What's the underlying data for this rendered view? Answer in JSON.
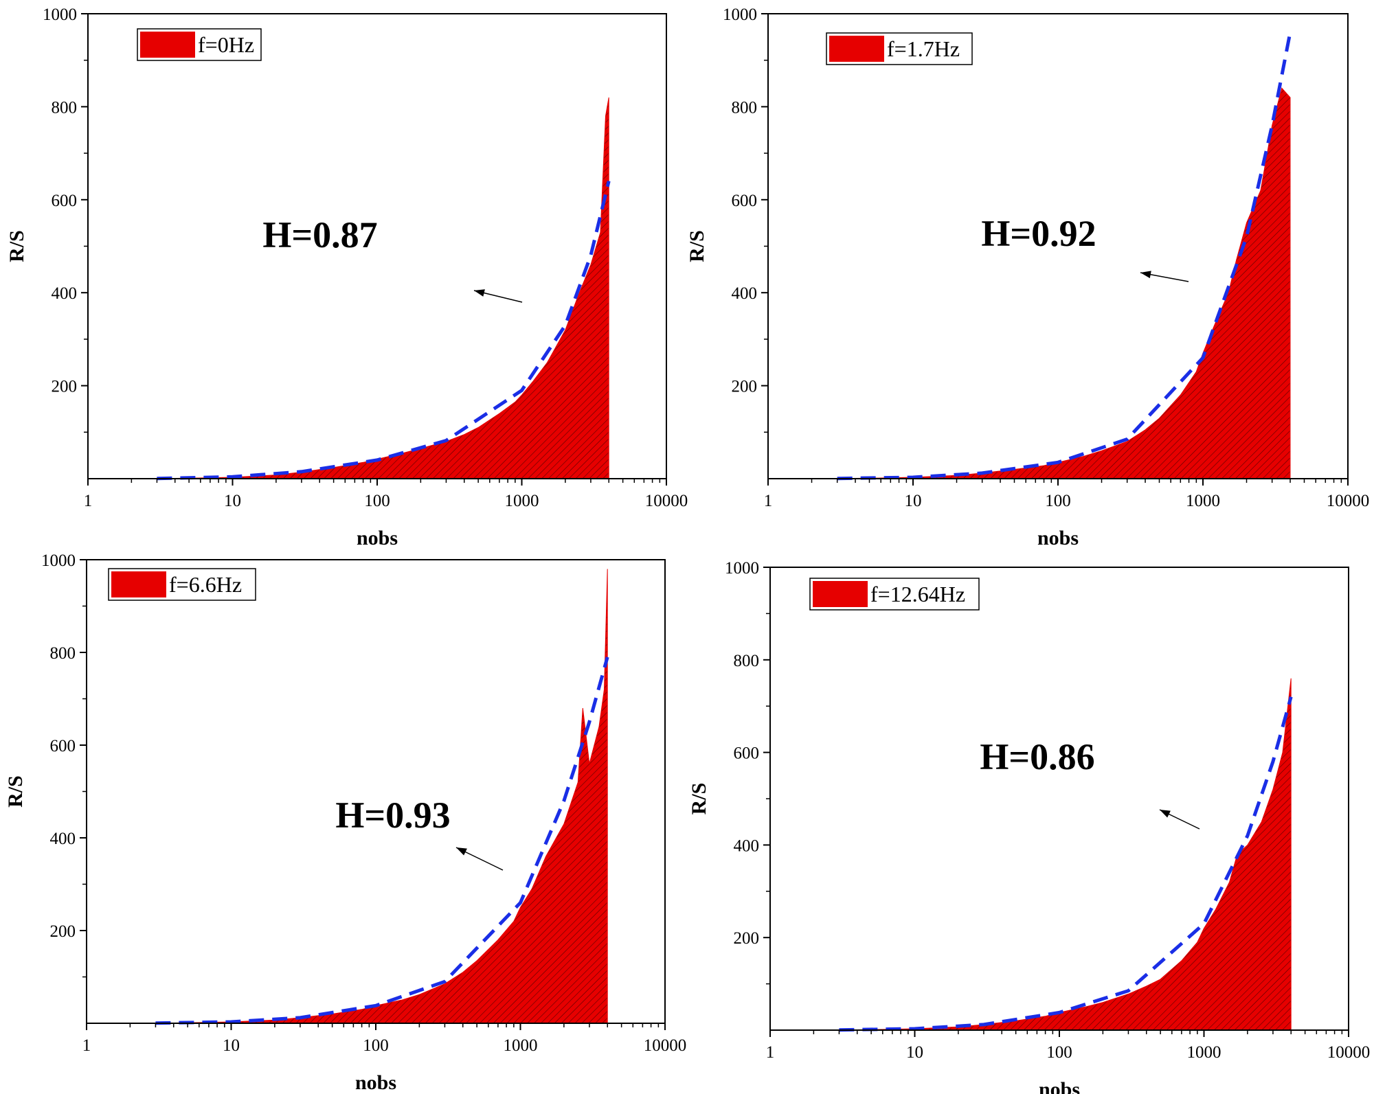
{
  "chart_data": [
    {
      "type": "area",
      "panel": "top-left",
      "legend": "f=0Hz",
      "legend_placement": "top-left",
      "annotation": "H=0.87",
      "xlabel": "nobs",
      "ylabel": "R/S",
      "xscale": "log",
      "xlim": [
        1,
        10000
      ],
      "ylim": [
        0,
        1000
      ],
      "xticks": [
        "1",
        "10",
        "100",
        "1000",
        "10000"
      ],
      "yticks": [
        "200",
        "400",
        "600",
        "800",
        "1000"
      ],
      "grid": false,
      "series": [
        {
          "x": [
            3,
            5,
            10,
            20,
            30,
            50,
            80,
            100,
            150,
            200,
            300,
            400,
            500,
            700,
            900,
            1000,
            1200,
            1500,
            2000,
            2500,
            3000,
            3500,
            3800,
            4000
          ],
          "y": [
            0.5,
            1,
            3,
            8,
            14,
            24,
            35,
            42,
            55,
            65,
            80,
            95,
            110,
            140,
            165,
            180,
            210,
            250,
            320,
            400,
            460,
            530,
            780,
            820
          ]
        }
      ],
      "fit": {
        "x": [
          3,
          10,
          30,
          100,
          300,
          1000,
          2000,
          3000,
          4000
        ],
        "y": [
          0.5,
          4,
          15,
          40,
          82,
          190,
          330,
          480,
          640
        ]
      }
    },
    {
      "type": "area",
      "panel": "top-right",
      "legend": "f=1.7Hz",
      "legend_placement": "top-left",
      "annotation": "H=0.92",
      "xlabel": "nobs",
      "ylabel": "R/S",
      "xscale": "log",
      "xlim": [
        1,
        10000
      ],
      "ylim": [
        0,
        1000
      ],
      "xticks": [
        "1",
        "10",
        "100",
        "1000",
        "10000"
      ],
      "yticks": [
        "200",
        "400",
        "600",
        "800",
        "1000"
      ],
      "grid": false,
      "series": [
        {
          "x": [
            3,
            5,
            10,
            20,
            30,
            50,
            80,
            100,
            150,
            200,
            300,
            400,
            500,
            700,
            900,
            1000,
            1200,
            1500,
            1700,
            2000,
            2500,
            3000,
            3500,
            4000
          ],
          "y": [
            0.5,
            1,
            3,
            7,
            12,
            20,
            28,
            35,
            48,
            60,
            80,
            105,
            130,
            180,
            230,
            270,
            330,
            400,
            470,
            550,
            620,
            760,
            840,
            820
          ]
        }
      ],
      "fit": {
        "x": [
          3,
          10,
          30,
          100,
          300,
          1000,
          2000,
          3000,
          4000
        ],
        "y": [
          0.5,
          3,
          12,
          35,
          85,
          260,
          520,
          760,
          960
        ]
      }
    },
    {
      "type": "area",
      "panel": "bottom-left",
      "legend": "f=6.6Hz",
      "legend_placement": "top-left",
      "annotation": "H=0.93",
      "xlabel": "nobs",
      "ylabel": "R/S",
      "xscale": "log",
      "xlim": [
        1,
        10000
      ],
      "ylim": [
        0,
        1000
      ],
      "xticks": [
        "1",
        "10",
        "100",
        "1000",
        "10000"
      ],
      "yticks": [
        "200",
        "400",
        "600",
        "800",
        "1000"
      ],
      "grid": false,
      "series": [
        {
          "x": [
            3,
            5,
            10,
            20,
            30,
            50,
            80,
            100,
            150,
            200,
            300,
            400,
            500,
            700,
            900,
            1000,
            1200,
            1500,
            2000,
            2500,
            2700,
            3000,
            3500,
            3800,
            4000
          ],
          "y": [
            0.5,
            1,
            3,
            7,
            12,
            20,
            30,
            38,
            50,
            62,
            85,
            110,
            135,
            180,
            220,
            250,
            290,
            360,
            430,
            520,
            680,
            560,
            640,
            720,
            980
          ]
        }
      ],
      "fit": {
        "x": [
          3,
          10,
          30,
          100,
          300,
          1000,
          2000,
          3000,
          4000
        ],
        "y": [
          0.5,
          3,
          12,
          38,
          90,
          260,
          480,
          650,
          790
        ]
      }
    },
    {
      "type": "area",
      "panel": "bottom-right",
      "legend": "f=12.64Hz",
      "legend_placement": "top-left",
      "annotation": "H=0.86",
      "xlabel": "nobs",
      "ylabel": "R/S",
      "xscale": "log",
      "xlim": [
        1,
        10000
      ],
      "ylim": [
        0,
        1000
      ],
      "xticks": [
        "1",
        "10",
        "100",
        "1000",
        "10000"
      ],
      "yticks": [
        "200",
        "400",
        "600",
        "800",
        "1000"
      ],
      "grid": false,
      "series": [
        {
          "x": [
            3,
            5,
            10,
            20,
            30,
            50,
            80,
            100,
            150,
            200,
            300,
            400,
            500,
            700,
            900,
            1000,
            1200,
            1500,
            1700,
            2000,
            2500,
            3000,
            3500,
            4000
          ],
          "y": [
            0.5,
            1,
            3,
            7,
            12,
            20,
            30,
            38,
            50,
            60,
            78,
            95,
            110,
            150,
            190,
            220,
            260,
            320,
            380,
            400,
            450,
            520,
            600,
            760
          ]
        }
      ],
      "fit": {
        "x": [
          3,
          10,
          30,
          100,
          300,
          1000,
          2000,
          3000,
          4000
        ],
        "y": [
          0.5,
          3,
          12,
          38,
          85,
          230,
          420,
          580,
          720
        ]
      }
    }
  ],
  "colors": {
    "fill": "#e60000",
    "hatch": "#5a0000",
    "fit_line": "#1a2ee6",
    "axis": "#000000"
  }
}
